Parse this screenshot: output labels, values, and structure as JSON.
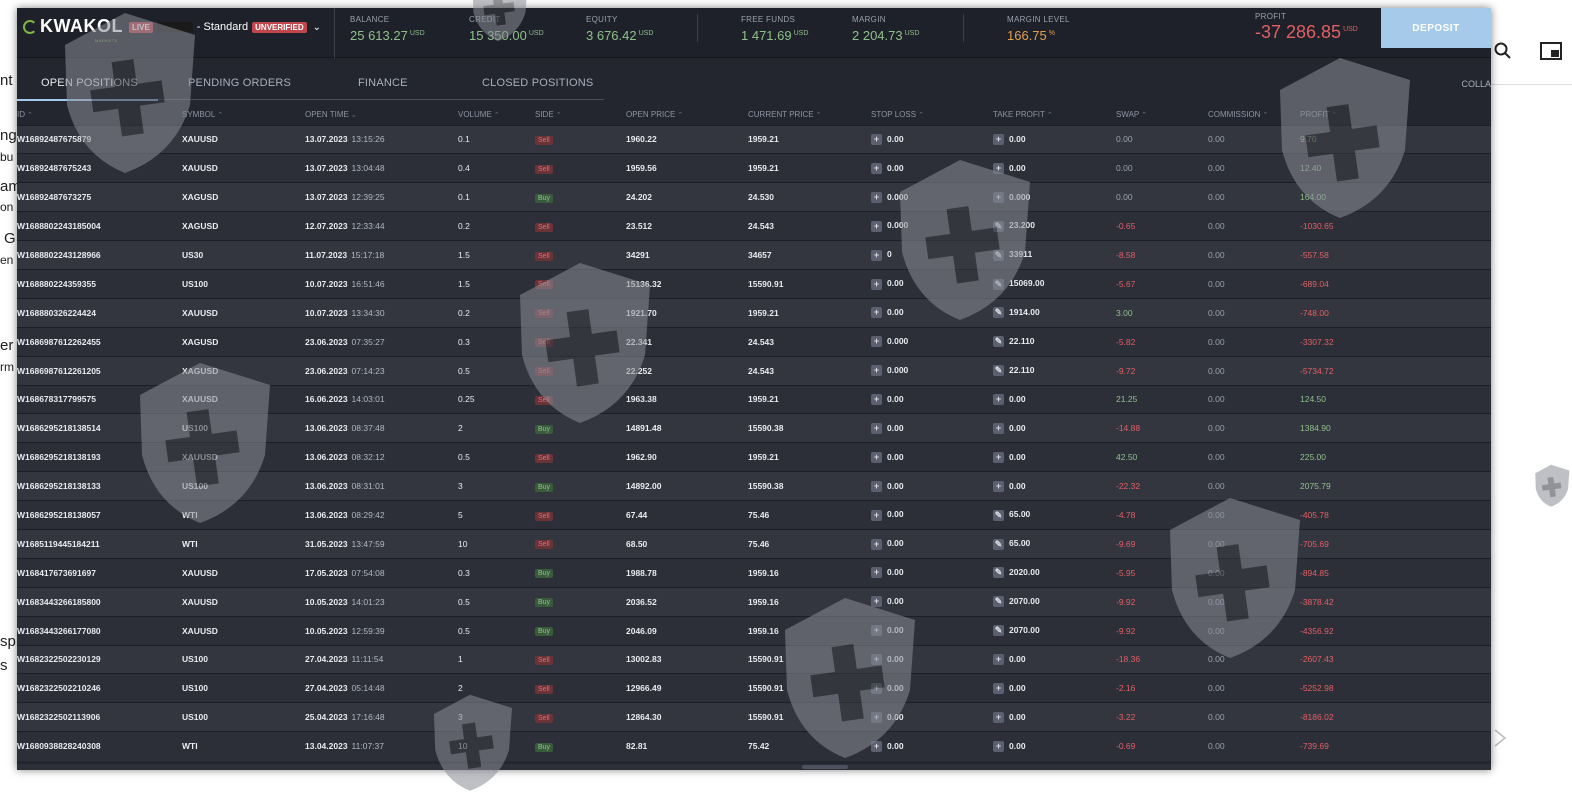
{
  "background": {
    "fragments": [
      "nt",
      "ng",
      "bu",
      "am",
      "on",
      "G",
      "en",
      "er",
      "rm",
      "sp",
      "s"
    ]
  },
  "header": {
    "logo": "KWAKOL",
    "logo_sub": "MARKETS",
    "live_badge": "LIVE",
    "account_type": "- Standard",
    "unverified_badge": "UNVERIFIED",
    "stats": [
      {
        "label": "BALANCE",
        "value": "25 613.27",
        "currency": "USD"
      },
      {
        "label": "CREDIT",
        "value": "15 350.00",
        "currency": "USD"
      },
      {
        "label": "EQUITY",
        "value": "3 676.42",
        "currency": "USD"
      },
      {
        "label": "FREE FUNDS",
        "value": "1 471.69",
        "currency": "USD"
      },
      {
        "label": "MARGIN",
        "value": "2 204.73",
        "currency": "USD"
      },
      {
        "label": "MARGIN LEVEL",
        "value": "166.75",
        "currency": "%"
      },
      {
        "label": "PROFIT",
        "value": "-37 286.85",
        "currency": "USD"
      }
    ],
    "deposit_label": "DEPOSIT"
  },
  "tabs": [
    {
      "label": "OPEN POSITIONS"
    },
    {
      "label": "PENDING ORDERS"
    },
    {
      "label": "FINANCE"
    },
    {
      "label": "CLOSED POSITIONS"
    }
  ],
  "collapse_label": "COLLA",
  "columns": [
    "ID",
    "SYMBOL",
    "OPEN TIME",
    "VOLUME",
    "SIDE",
    "OPEN PRICE",
    "CURRENT PRICE",
    "STOP LOSS",
    "TAKE PROFIT",
    "SWAP",
    "COMMISSION",
    "PROFIT"
  ],
  "rows": [
    {
      "id": "W16892487675879",
      "symbol": "XAUUSD",
      "date": "13.07.2023",
      "time": "13:15:26",
      "volume": "0.1",
      "side": "Sell",
      "open": "1960.22",
      "current": "1959.21",
      "sl": "0.00",
      "tp": "0.00",
      "swap": "0.00",
      "commission": "0.00",
      "profit": "9.70"
    },
    {
      "id": "W16892487675243",
      "symbol": "XAUUSD",
      "date": "13.07.2023",
      "time": "13:04:48",
      "volume": "0.4",
      "side": "Sell",
      "open": "1959.56",
      "current": "1959.21",
      "sl": "0.00",
      "tp": "0.00",
      "swap": "0.00",
      "commission": "0.00",
      "profit": "12.40"
    },
    {
      "id": "W16892487673275",
      "symbol": "XAGUSD",
      "date": "13.07.2023",
      "time": "12:39:25",
      "volume": "0.1",
      "side": "Buy",
      "open": "24.202",
      "current": "24.530",
      "sl": "0.000",
      "tp": "0.000",
      "swap": "0.00",
      "commission": "0.00",
      "profit": "164.00"
    },
    {
      "id": "W1688802243185004",
      "symbol": "XAGUSD",
      "date": "12.07.2023",
      "time": "12:33:44",
      "volume": "0.2",
      "side": "Sell",
      "open": "23.512",
      "current": "24.543",
      "sl": "0.000",
      "tp": "23.200",
      "swap": "-0.65",
      "commission": "0.00",
      "profit": "-1030.65"
    },
    {
      "id": "W1688802243128966",
      "symbol": "US30",
      "date": "11.07.2023",
      "time": "15:17:18",
      "volume": "1.5",
      "side": "Sell",
      "open": "34291",
      "current": "34657",
      "sl": "0",
      "tp": "33911",
      "swap": "-8.58",
      "commission": "0.00",
      "profit": "-557.58"
    },
    {
      "id": "W168880224359355",
      "symbol": "US100",
      "date": "10.07.2023",
      "time": "16:51:46",
      "volume": "1.5",
      "side": "Sell",
      "open": "15136.32",
      "current": "15590.91",
      "sl": "0.00",
      "tp": "15069.00",
      "swap": "-5.67",
      "commission": "0.00",
      "profit": "-689.04"
    },
    {
      "id": "W168880326224424",
      "symbol": "XAUUSD",
      "date": "10.07.2023",
      "time": "13:34:30",
      "volume": "0.2",
      "side": "Sell",
      "open": "1921.70",
      "current": "1959.21",
      "sl": "0.00",
      "tp": "1914.00",
      "swap": "3.00",
      "commission": "0.00",
      "profit": "-748.00"
    },
    {
      "id": "W1686987612262455",
      "symbol": "XAGUSD",
      "date": "23.06.2023",
      "time": "07:35:27",
      "volume": "0.3",
      "side": "Sell",
      "open": "22.341",
      "current": "24.543",
      "sl": "0.000",
      "tp": "22.110",
      "swap": "-5.82",
      "commission": "0.00",
      "profit": "-3307.32"
    },
    {
      "id": "W1686987612261205",
      "symbol": "XAGUSD",
      "date": "23.06.2023",
      "time": "07:14:23",
      "volume": "0.5",
      "side": "Sell",
      "open": "22.252",
      "current": "24.543",
      "sl": "0.000",
      "tp": "22.110",
      "swap": "-9.72",
      "commission": "0.00",
      "profit": "-5734.72"
    },
    {
      "id": "W168678317799575",
      "symbol": "XAUUSD",
      "date": "16.06.2023",
      "time": "14:03:01",
      "volume": "0.25",
      "side": "Sell",
      "open": "1963.38",
      "current": "1959.21",
      "sl": "0.00",
      "tp": "0.00",
      "swap": "21.25",
      "commission": "0.00",
      "profit": "124.50"
    },
    {
      "id": "W1686295218138514",
      "symbol": "US100",
      "date": "13.06.2023",
      "time": "08:37:48",
      "volume": "2",
      "side": "Buy",
      "open": "14891.48",
      "current": "15590.38",
      "sl": "0.00",
      "tp": "0.00",
      "swap": "-14.88",
      "commission": "0.00",
      "profit": "1384.90"
    },
    {
      "id": "W1686295218138193",
      "symbol": "XAUUSD",
      "date": "13.06.2023",
      "time": "08:32:12",
      "volume": "0.5",
      "side": "Sell",
      "open": "1962.90",
      "current": "1959.21",
      "sl": "0.00",
      "tp": "0.00",
      "swap": "42.50",
      "commission": "0.00",
      "profit": "225.00"
    },
    {
      "id": "W1686295218138133",
      "symbol": "US100",
      "date": "13.06.2023",
      "time": "08:31:01",
      "volume": "3",
      "side": "Buy",
      "open": "14892.00",
      "current": "15590.38",
      "sl": "0.00",
      "tp": "0.00",
      "swap": "-22.32",
      "commission": "0.00",
      "profit": "2075.79"
    },
    {
      "id": "W1686295218138057",
      "symbol": "WTI",
      "date": "13.06.2023",
      "time": "08:29:42",
      "volume": "5",
      "side": "Sell",
      "open": "67.44",
      "current": "75.46",
      "sl": "0.00",
      "tp": "65.00",
      "swap": "-4.78",
      "commission": "0.00",
      "profit": "-405.78"
    },
    {
      "id": "W1685119445184211",
      "symbol": "WTI",
      "date": "31.05.2023",
      "time": "13:47:59",
      "volume": "10",
      "side": "Sell",
      "open": "68.50",
      "current": "75.46",
      "sl": "0.00",
      "tp": "65.00",
      "swap": "-9.69",
      "commission": "0.00",
      "profit": "-705.69"
    },
    {
      "id": "W168417673691697",
      "symbol": "XAUUSD",
      "date": "17.05.2023",
      "time": "07:54:08",
      "volume": "0.3",
      "side": "Buy",
      "open": "1988.78",
      "current": "1959.16",
      "sl": "0.00",
      "tp": "2020.00",
      "swap": "-5.95",
      "commission": "0.00",
      "profit": "-894.85"
    },
    {
      "id": "W1683443266185800",
      "symbol": "XAUUSD",
      "date": "10.05.2023",
      "time": "14:01:23",
      "volume": "0.5",
      "side": "Buy",
      "open": "2036.52",
      "current": "1959.16",
      "sl": "0.00",
      "tp": "2070.00",
      "swap": "-9.92",
      "commission": "0.00",
      "profit": "-3878.42"
    },
    {
      "id": "W1683443266177080",
      "symbol": "XAUUSD",
      "date": "10.05.2023",
      "time": "12:59:39",
      "volume": "0.5",
      "side": "Buy",
      "open": "2046.09",
      "current": "1959.16",
      "sl": "0.00",
      "tp": "2070.00",
      "swap": "-9.92",
      "commission": "0.00",
      "profit": "-4356.92"
    },
    {
      "id": "W1682322502230129",
      "symbol": "US100",
      "date": "27.04.2023",
      "time": "11:11:54",
      "volume": "1",
      "side": "Sell",
      "open": "13002.83",
      "current": "15590.91",
      "sl": "0.00",
      "tp": "0.00",
      "swap": "-18.36",
      "commission": "0.00",
      "profit": "-2607.43"
    },
    {
      "id": "W1682322502210246",
      "symbol": "US100",
      "date": "27.04.2023",
      "time": "05:14:48",
      "volume": "2",
      "side": "Sell",
      "open": "12966.49",
      "current": "15590.91",
      "sl": "0.00",
      "tp": "0.00",
      "swap": "-2.16",
      "commission": "0.00",
      "profit": "-5252.98"
    },
    {
      "id": "W1682322502113906",
      "symbol": "US100",
      "date": "25.04.2023",
      "time": "17:16:48",
      "volume": "3",
      "side": "Sell",
      "open": "12864.30",
      "current": "15590.91",
      "sl": "0.00",
      "tp": "0.00",
      "swap": "-3.22",
      "commission": "0.00",
      "profit": "-8186.02"
    },
    {
      "id": "W1680938828240308",
      "symbol": "WTI",
      "date": "13.04.2023",
      "time": "11:07:37",
      "volume": "10",
      "side": "Buy",
      "open": "82.81",
      "current": "75.42",
      "sl": "0.00",
      "tp": "0.00",
      "swap": "-0.69",
      "commission": "0.00",
      "profit": "-739.69"
    }
  ],
  "colors": {
    "accent": "#a6cbea",
    "positive": "#8fc08a",
    "negative": "#e06064",
    "warning": "#e0a050"
  }
}
